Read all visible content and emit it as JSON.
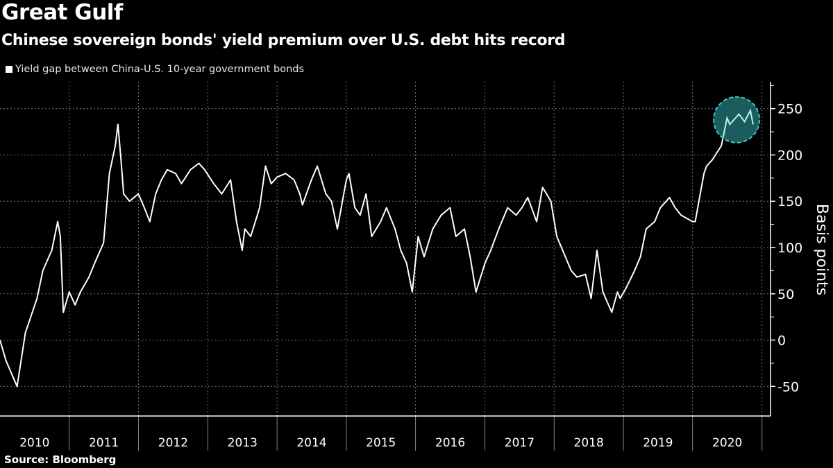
{
  "title": "Great Gulf",
  "subtitle": "Chinese sovereign bonds' yield premium over U.S. debt hits record",
  "source": "Source: Bloomberg",
  "colors": {
    "background": "#000000",
    "line": "#ffffff",
    "highlight_fill": "#1d5c5c",
    "highlight_stroke": "#3fc7bd",
    "highlight_line": "#b8f4f4"
  },
  "chart_data": {
    "type": "line",
    "title": "Great Gulf",
    "subtitle": "Chinese sovereign bonds' yield premium over U.S. debt hits record",
    "ylabel": "Basis points",
    "xlabel": "",
    "ylim": [
      -82,
      279
    ],
    "xlim": [
      "2010-01-01",
      "2021-02-15"
    ],
    "grid": true,
    "legend_placement": "top-left",
    "y_ticks": [
      "-50",
      "0",
      "50",
      "100",
      "150",
      "200",
      "250"
    ],
    "x_ticks": [
      "2010",
      "2011",
      "2012",
      "2013",
      "2014",
      "2015",
      "2016",
      "2017",
      "2018",
      "2019",
      "2020"
    ],
    "series": [
      {
        "name": "Yield gap between China-U.S. 10-year government bonds",
        "x": [
          "2010-01-01",
          "2010-02-01",
          "2010-04-01",
          "2010-05-15",
          "2010-07-15",
          "2010-08-15",
          "2010-10-01",
          "2010-11-01",
          "2010-11-15",
          "2010-12-01",
          "2011-01-01",
          "2011-02-01",
          "2011-03-01",
          "2011-04-15",
          "2011-05-15",
          "2011-07-01",
          "2011-08-01",
          "2011-09-01",
          "2011-09-15",
          "2011-10-01",
          "2011-10-15",
          "2011-11-15",
          "2012-01-01",
          "2012-02-01",
          "2012-03-01",
          "2012-04-01",
          "2012-05-01",
          "2012-06-01",
          "2012-07-15",
          "2012-08-15",
          "2012-10-01",
          "2012-11-15",
          "2012-12-15",
          "2013-02-01",
          "2013-03-15",
          "2013-05-01",
          "2013-06-01",
          "2013-07-01",
          "2013-07-15",
          "2013-08-15",
          "2013-10-01",
          "2013-11-01",
          "2013-12-01",
          "2014-01-01",
          "2014-02-15",
          "2014-04-01",
          "2014-05-01",
          "2014-05-15",
          "2014-07-01",
          "2014-08-01",
          "2014-09-15",
          "2014-10-15",
          "2014-11-15",
          "2015-01-01",
          "2015-01-15",
          "2015-02-15",
          "2015-03-15",
          "2015-04-15",
          "2015-05-15",
          "2015-07-01",
          "2015-08-01",
          "2015-09-15",
          "2015-10-15",
          "2015-11-15",
          "2015-12-15",
          "2016-01-15",
          "2016-02-15",
          "2016-04-01",
          "2016-05-15",
          "2016-07-01",
          "2016-08-01",
          "2016-09-15",
          "2016-10-15",
          "2016-11-15",
          "2017-01-01",
          "2017-02-01",
          "2017-03-15",
          "2017-05-01",
          "2017-06-15",
          "2017-07-15",
          "2017-08-15",
          "2017-10-01",
          "2017-11-01",
          "2017-12-15",
          "2018-01-15",
          "2018-03-01",
          "2018-04-01",
          "2018-05-01",
          "2018-06-15",
          "2018-07-15",
          "2018-08-15",
          "2018-09-15",
          "2018-11-01",
          "2018-12-01",
          "2018-12-15",
          "2019-01-15",
          "2019-03-01",
          "2019-04-01",
          "2019-05-01",
          "2019-06-15",
          "2019-07-15",
          "2019-09-01",
          "2019-10-01",
          "2019-11-01",
          "2020-01-01",
          "2020-01-15",
          "2020-03-01",
          "2020-03-15",
          "2020-04-15",
          "2020-06-01",
          "2020-07-01",
          "2020-07-15",
          "2020-09-01",
          "2020-10-01",
          "2020-11-01",
          "2020-11-15"
        ],
        "values": [
          0,
          -22,
          -50,
          8,
          45,
          75,
          97,
          128,
          112,
          30,
          52,
          38,
          52,
          68,
          83,
          105,
          180,
          210,
          233,
          195,
          158,
          150,
          158,
          143,
          128,
          158,
          173,
          184,
          180,
          169,
          184,
          191,
          184,
          169,
          158,
          173,
          128,
          97,
          120,
          112,
          143,
          188,
          169,
          176,
          180,
          173,
          158,
          146,
          173,
          188,
          158,
          150,
          120,
          173,
          180,
          143,
          135,
          158,
          112,
          128,
          143,
          120,
          97,
          83,
          52,
          112,
          90,
          120,
          135,
          143,
          112,
          120,
          90,
          52,
          83,
          97,
          120,
          143,
          135,
          143,
          154,
          128,
          165,
          150,
          112,
          90,
          75,
          68,
          71,
          45,
          97,
          52,
          30,
          52,
          45,
          56,
          75,
          90,
          120,
          128,
          143,
          154,
          143,
          135,
          128,
          128,
          180,
          188,
          195,
          210,
          240,
          233,
          244,
          236,
          248,
          233
        ]
      }
    ]
  }
}
